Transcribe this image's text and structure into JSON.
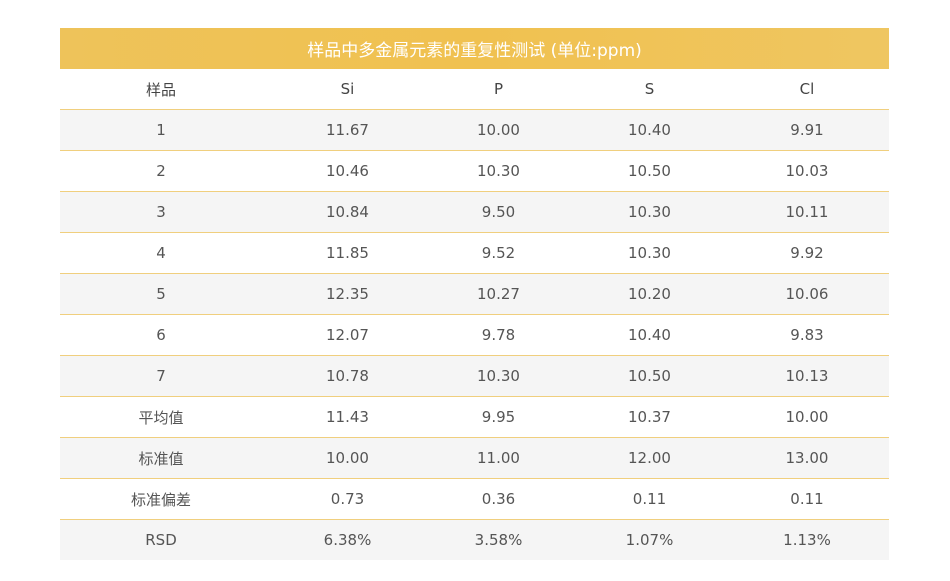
{
  "table": {
    "title": "样品中多金属元素的重复性测试 (单位:ppm)",
    "headers": [
      "样品",
      "Si",
      "P",
      "S",
      "Cl"
    ],
    "rows": [
      [
        "1",
        "11.67",
        "10.00",
        "10.40",
        "9.91"
      ],
      [
        "2",
        "10.46",
        "10.30",
        "10.50",
        "10.03"
      ],
      [
        "3",
        "10.84",
        "9.50",
        "10.30",
        "10.11"
      ],
      [
        "4",
        "11.85",
        "9.52",
        "10.30",
        "9.92"
      ],
      [
        "5",
        "12.35",
        "10.27",
        "10.20",
        "10.06"
      ],
      [
        "6",
        "12.07",
        "9.78",
        "10.40",
        "9.83"
      ],
      [
        "7",
        "10.78",
        "10.30",
        "10.50",
        "10.13"
      ],
      [
        "平均值",
        "11.43",
        "9.95",
        "10.37",
        "10.00"
      ],
      [
        "标准值",
        "10.00",
        "11.00",
        "12.00",
        "13.00"
      ],
      [
        "标准偏差",
        "0.73",
        "0.36",
        "0.11",
        "0.11"
      ],
      [
        "RSD",
        "6.38%",
        "3.58%",
        "1.07%",
        "1.13%"
      ]
    ]
  },
  "colors": {
    "title_bar": "#f0c150",
    "title_text": "#ffffff",
    "row_divider": "#f0cf7e",
    "shaded_row": "#f5f5f5"
  }
}
